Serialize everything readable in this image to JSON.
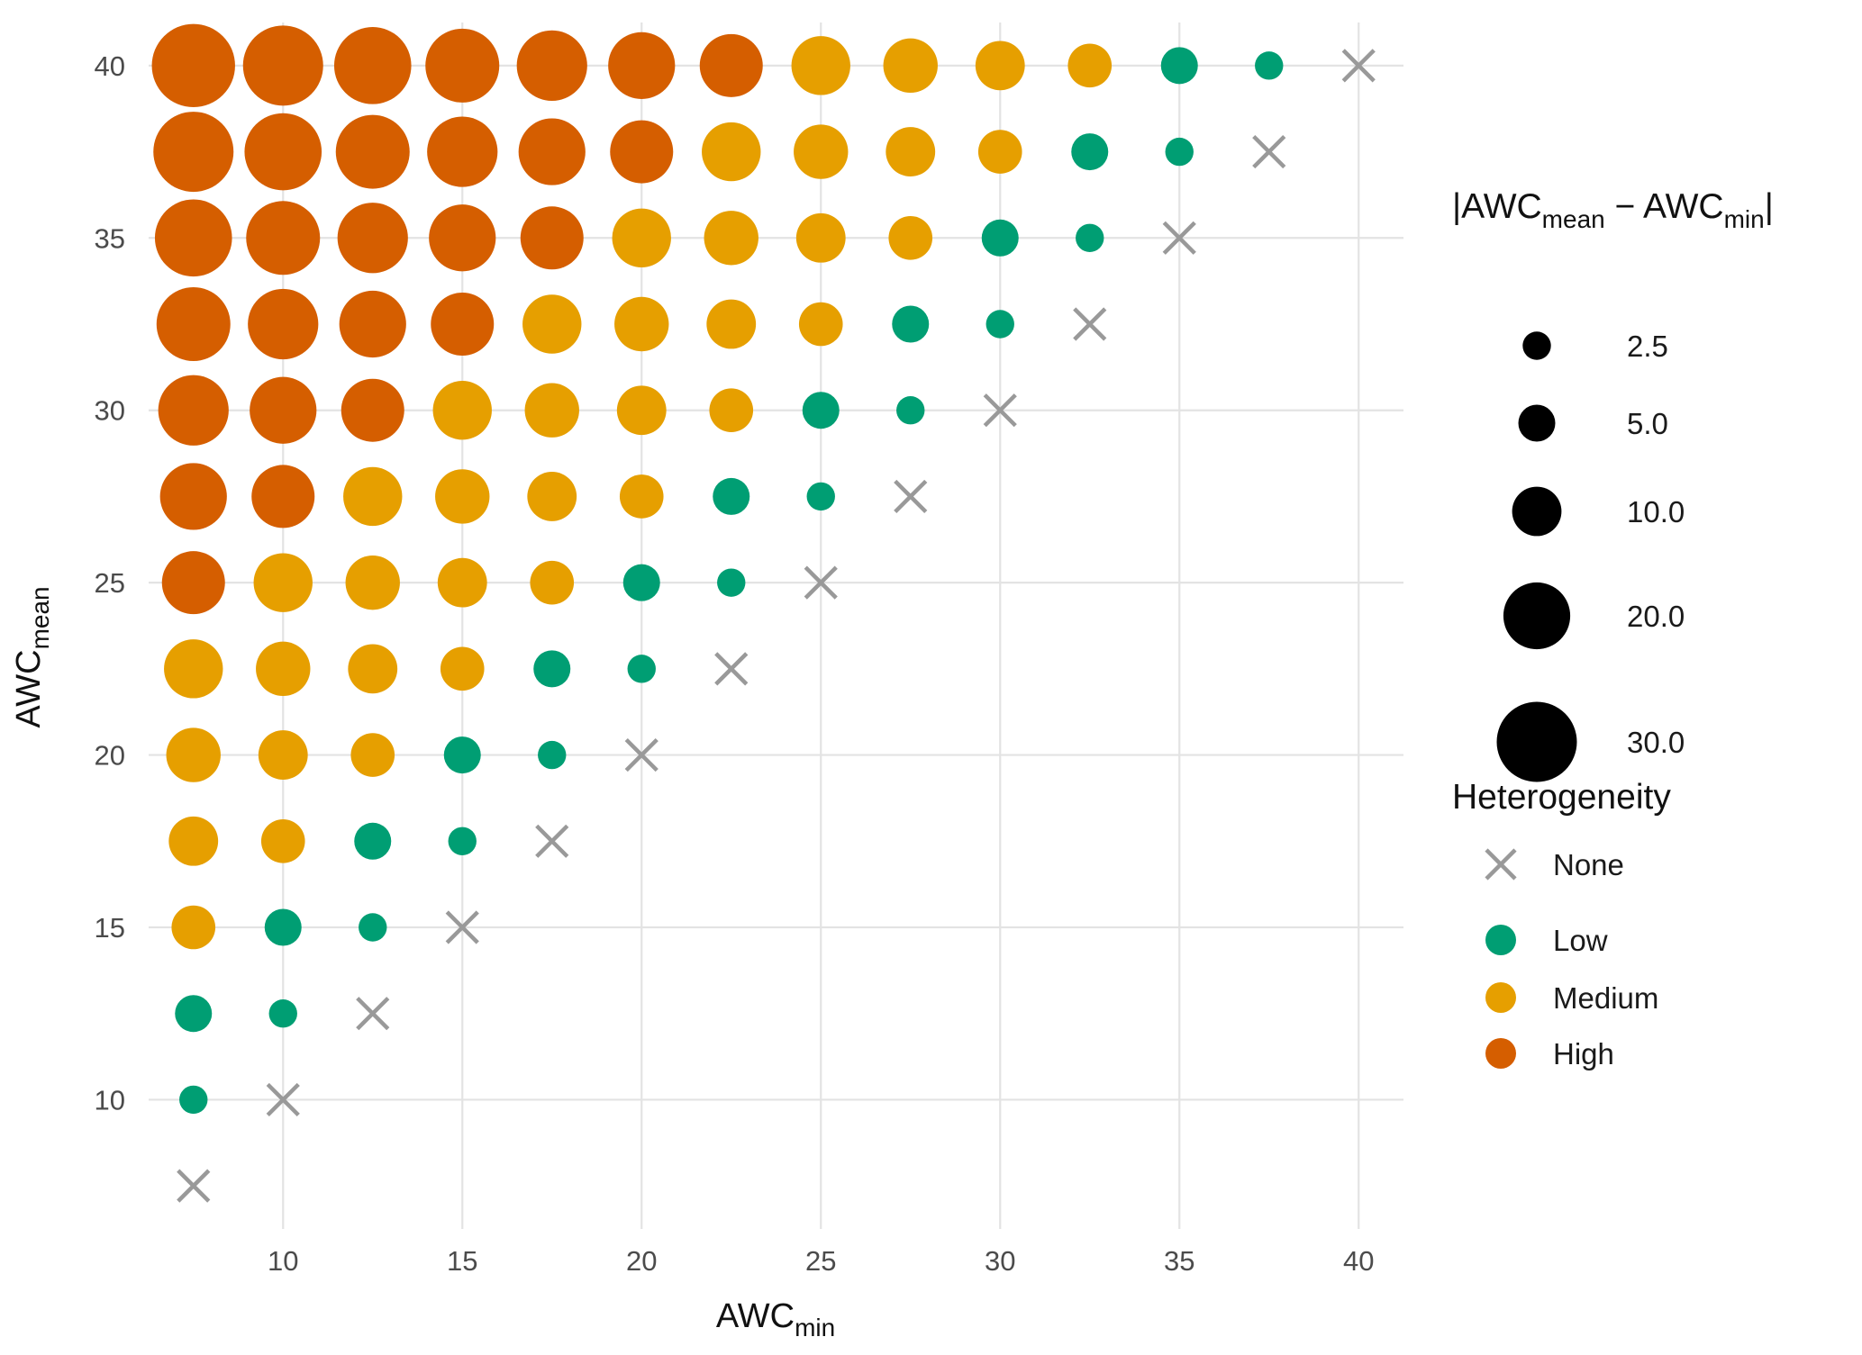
{
  "axes": {
    "x_title_main": "AWC",
    "x_title_sub": "min",
    "y_title_main": "AWC",
    "y_title_sub": "mean"
  },
  "legend_size": {
    "t1": "|AWC",
    "t2": "mean",
    "t3": " − AWC",
    "t4": "min",
    "t5": "|",
    "items": [
      "2.5",
      "5.0",
      "10.0",
      "20.0",
      "30.0"
    ]
  },
  "legend_color": {
    "title": "Heterogeneity"
  },
  "chart_data": {
    "type": "scatter",
    "title": "",
    "xlabel": "AWC_min",
    "ylabel": "AWC_mean",
    "xlim": [
      6.25,
      41.25
    ],
    "ylim": [
      6.25,
      41.25
    ],
    "x_ticks": [
      10,
      15,
      20,
      25,
      30,
      35,
      40
    ],
    "y_ticks": [
      10,
      15,
      20,
      25,
      30,
      35,
      40
    ],
    "grid": "major gridlines only, light gray on white",
    "grid_color": "#e3e3e3",
    "size_variable": "|AWC_mean - AWC_min|",
    "size_legend_values": [
      2.5,
      5,
      10,
      20,
      30
    ],
    "size_rule": "point size proportional to sqrt of |AWC_mean - AWC_min|",
    "heterogeneity_categories": [
      {
        "label": "None",
        "color": "#999999",
        "shape": "x"
      },
      {
        "label": "Low",
        "color": "#009E73",
        "shape": "circle"
      },
      {
        "label": "Medium",
        "color": "#E69F00",
        "shape": "circle"
      },
      {
        "label": "High",
        "color": "#D55E00",
        "shape": "circle"
      }
    ],
    "rule": "points at every (AWC_min, AWC_max) pair with 7.5 <= x <= y <= 40 in steps of 2.5; size = y - x; heterogeneity: 0 = None, 2.5-5 = Low, 7.5-15 = Medium, >= 17.5 = High",
    "points": [
      [
        7.5,
        40,
        32.5,
        "High"
      ],
      [
        10,
        40,
        30,
        "High"
      ],
      [
        12.5,
        40,
        27.5,
        "High"
      ],
      [
        15,
        40,
        25,
        "High"
      ],
      [
        17.5,
        40,
        22.5,
        "High"
      ],
      [
        20,
        40,
        20,
        "High"
      ],
      [
        22.5,
        40,
        17.5,
        "High"
      ],
      [
        25,
        40,
        15,
        "Medium"
      ],
      [
        27.5,
        40,
        12.5,
        "Medium"
      ],
      [
        30,
        40,
        10,
        "Medium"
      ],
      [
        32.5,
        40,
        7.5,
        "Medium"
      ],
      [
        35,
        40,
        5,
        "Low"
      ],
      [
        37.5,
        40,
        2.5,
        "Low"
      ],
      [
        40,
        40,
        0,
        "None"
      ],
      [
        7.5,
        37.5,
        30,
        "High"
      ],
      [
        10,
        37.5,
        27.5,
        "High"
      ],
      [
        12.5,
        37.5,
        25,
        "High"
      ],
      [
        15,
        37.5,
        22.5,
        "High"
      ],
      [
        17.5,
        37.5,
        20,
        "High"
      ],
      [
        20,
        37.5,
        17.5,
        "High"
      ],
      [
        22.5,
        37.5,
        15,
        "Medium"
      ],
      [
        25,
        37.5,
        12.5,
        "Medium"
      ],
      [
        27.5,
        37.5,
        10,
        "Medium"
      ],
      [
        30,
        37.5,
        7.5,
        "Medium"
      ],
      [
        32.5,
        37.5,
        5,
        "Low"
      ],
      [
        35,
        37.5,
        2.5,
        "Low"
      ],
      [
        37.5,
        37.5,
        0,
        "None"
      ],
      [
        7.5,
        35,
        27.5,
        "High"
      ],
      [
        10,
        35,
        25,
        "High"
      ],
      [
        12.5,
        35,
        22.5,
        "High"
      ],
      [
        15,
        35,
        20,
        "High"
      ],
      [
        17.5,
        35,
        17.5,
        "High"
      ],
      [
        20,
        35,
        15,
        "Medium"
      ],
      [
        22.5,
        35,
        12.5,
        "Medium"
      ],
      [
        25,
        35,
        10,
        "Medium"
      ],
      [
        27.5,
        35,
        7.5,
        "Medium"
      ],
      [
        30,
        35,
        5,
        "Low"
      ],
      [
        32.5,
        35,
        2.5,
        "Low"
      ],
      [
        35,
        35,
        0,
        "None"
      ],
      [
        7.5,
        32.5,
        25,
        "High"
      ],
      [
        10,
        32.5,
        22.5,
        "High"
      ],
      [
        12.5,
        32.5,
        20,
        "High"
      ],
      [
        15,
        32.5,
        17.5,
        "High"
      ],
      [
        17.5,
        32.5,
        15,
        "Medium"
      ],
      [
        20,
        32.5,
        12.5,
        "Medium"
      ],
      [
        22.5,
        32.5,
        10,
        "Medium"
      ],
      [
        25,
        32.5,
        7.5,
        "Medium"
      ],
      [
        27.5,
        32.5,
        5,
        "Low"
      ],
      [
        30,
        32.5,
        2.5,
        "Low"
      ],
      [
        32.5,
        32.5,
        0,
        "None"
      ],
      [
        7.5,
        30,
        22.5,
        "High"
      ],
      [
        10,
        30,
        20,
        "High"
      ],
      [
        12.5,
        30,
        17.5,
        "High"
      ],
      [
        15,
        30,
        15,
        "Medium"
      ],
      [
        17.5,
        30,
        12.5,
        "Medium"
      ],
      [
        20,
        30,
        10,
        "Medium"
      ],
      [
        22.5,
        30,
        7.5,
        "Medium"
      ],
      [
        25,
        30,
        5,
        "Low"
      ],
      [
        27.5,
        30,
        2.5,
        "Low"
      ],
      [
        30,
        30,
        0,
        "None"
      ],
      [
        7.5,
        27.5,
        20,
        "High"
      ],
      [
        10,
        27.5,
        17.5,
        "High"
      ],
      [
        12.5,
        27.5,
        15,
        "Medium"
      ],
      [
        15,
        27.5,
        12.5,
        "Medium"
      ],
      [
        17.5,
        27.5,
        10,
        "Medium"
      ],
      [
        20,
        27.5,
        7.5,
        "Medium"
      ],
      [
        22.5,
        27.5,
        5,
        "Low"
      ],
      [
        25,
        27.5,
        2.5,
        "Low"
      ],
      [
        27.5,
        27.5,
        0,
        "None"
      ],
      [
        7.5,
        25,
        17.5,
        "High"
      ],
      [
        10,
        25,
        15,
        "Medium"
      ],
      [
        12.5,
        25,
        12.5,
        "Medium"
      ],
      [
        15,
        25,
        10,
        "Medium"
      ],
      [
        17.5,
        25,
        7.5,
        "Medium"
      ],
      [
        20,
        25,
        5,
        "Low"
      ],
      [
        22.5,
        25,
        2.5,
        "Low"
      ],
      [
        25,
        25,
        0,
        "None"
      ],
      [
        7.5,
        22.5,
        15,
        "Medium"
      ],
      [
        10,
        22.5,
        12.5,
        "Medium"
      ],
      [
        12.5,
        22.5,
        10,
        "Medium"
      ],
      [
        15,
        22.5,
        7.5,
        "Medium"
      ],
      [
        17.5,
        22.5,
        5,
        "Low"
      ],
      [
        20,
        22.5,
        2.5,
        "Low"
      ],
      [
        22.5,
        22.5,
        0,
        "None"
      ],
      [
        7.5,
        20,
        12.5,
        "Medium"
      ],
      [
        10,
        20,
        10,
        "Medium"
      ],
      [
        12.5,
        20,
        7.5,
        "Medium"
      ],
      [
        15,
        20,
        5,
        "Low"
      ],
      [
        17.5,
        20,
        2.5,
        "Low"
      ],
      [
        20,
        20,
        0,
        "None"
      ],
      [
        7.5,
        17.5,
        10,
        "Medium"
      ],
      [
        10,
        17.5,
        7.5,
        "Medium"
      ],
      [
        12.5,
        17.5,
        5,
        "Low"
      ],
      [
        15,
        17.5,
        2.5,
        "Low"
      ],
      [
        17.5,
        17.5,
        0,
        "None"
      ],
      [
        7.5,
        15,
        7.5,
        "Medium"
      ],
      [
        10,
        15,
        5,
        "Low"
      ],
      [
        12.5,
        15,
        2.5,
        "Low"
      ],
      [
        15,
        15,
        0,
        "None"
      ],
      [
        7.5,
        12.5,
        5,
        "Low"
      ],
      [
        10,
        12.5,
        2.5,
        "Low"
      ],
      [
        12.5,
        12.5,
        0,
        "None"
      ],
      [
        7.5,
        10,
        2.5,
        "Low"
      ],
      [
        10,
        10,
        0,
        "None"
      ],
      [
        7.5,
        7.5,
        0,
        "None"
      ]
    ]
  }
}
